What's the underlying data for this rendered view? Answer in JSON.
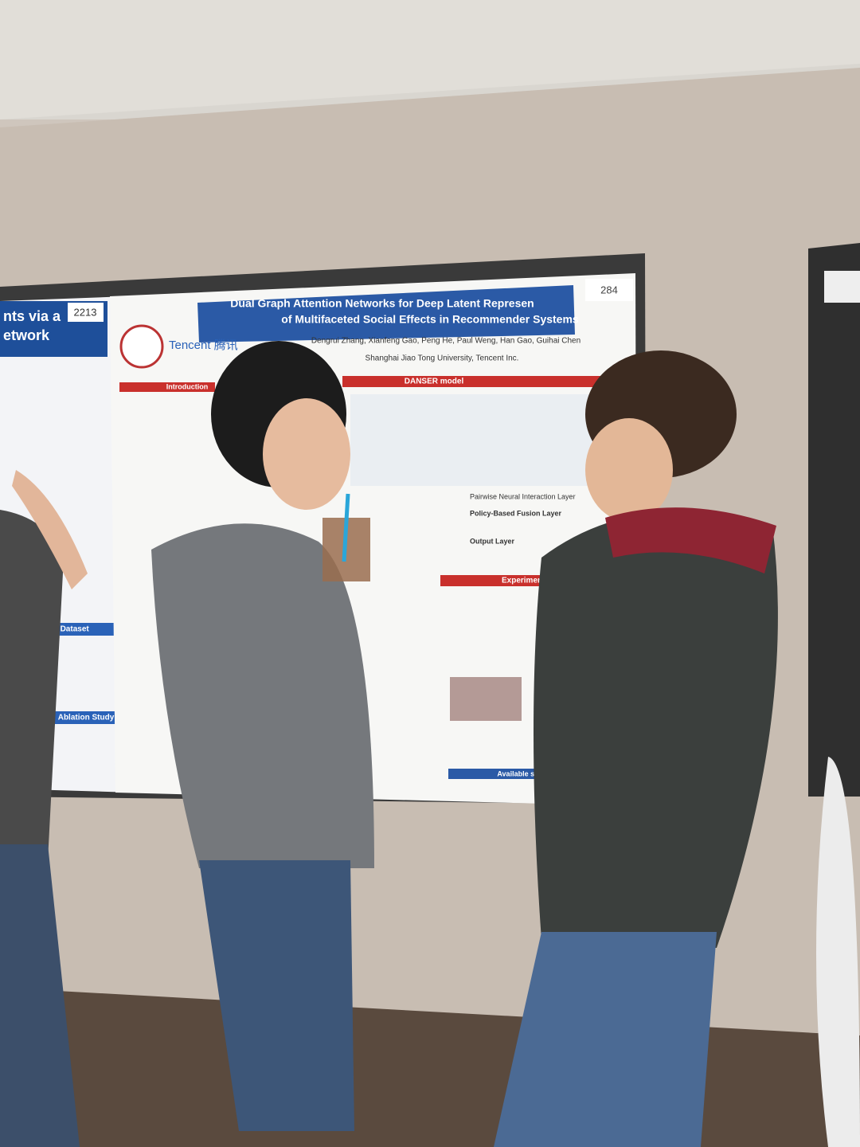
{
  "left_poster": {
    "number": "2213",
    "title_lines": [
      "nts via a",
      "etwork"
    ],
    "sections": [
      "Experimental Dataset",
      "Ablation Study"
    ]
  },
  "main_poster": {
    "number": "284",
    "title_lines": [
      "Dual Graph Attention Networks for Deep Latent Represen",
      "of Multifaceted Social Effects in Recommender Systems"
    ],
    "logo": "Tencent 腾讯",
    "authors": "Dengrui Zhang, Xianfeng Gao, Peng He, Paul Weng, Han Gao, Guihai Chen",
    "affiliations": "Shanghai Jiao Tong University, Tencent Inc.",
    "sections": [
      "Introduction",
      "DANSER model",
      "Experiments",
      "Available source"
    ],
    "layers": [
      "Pairwise Neural Interaction Layer",
      "Policy-Based Fusion Layer",
      "Output Layer"
    ]
  }
}
